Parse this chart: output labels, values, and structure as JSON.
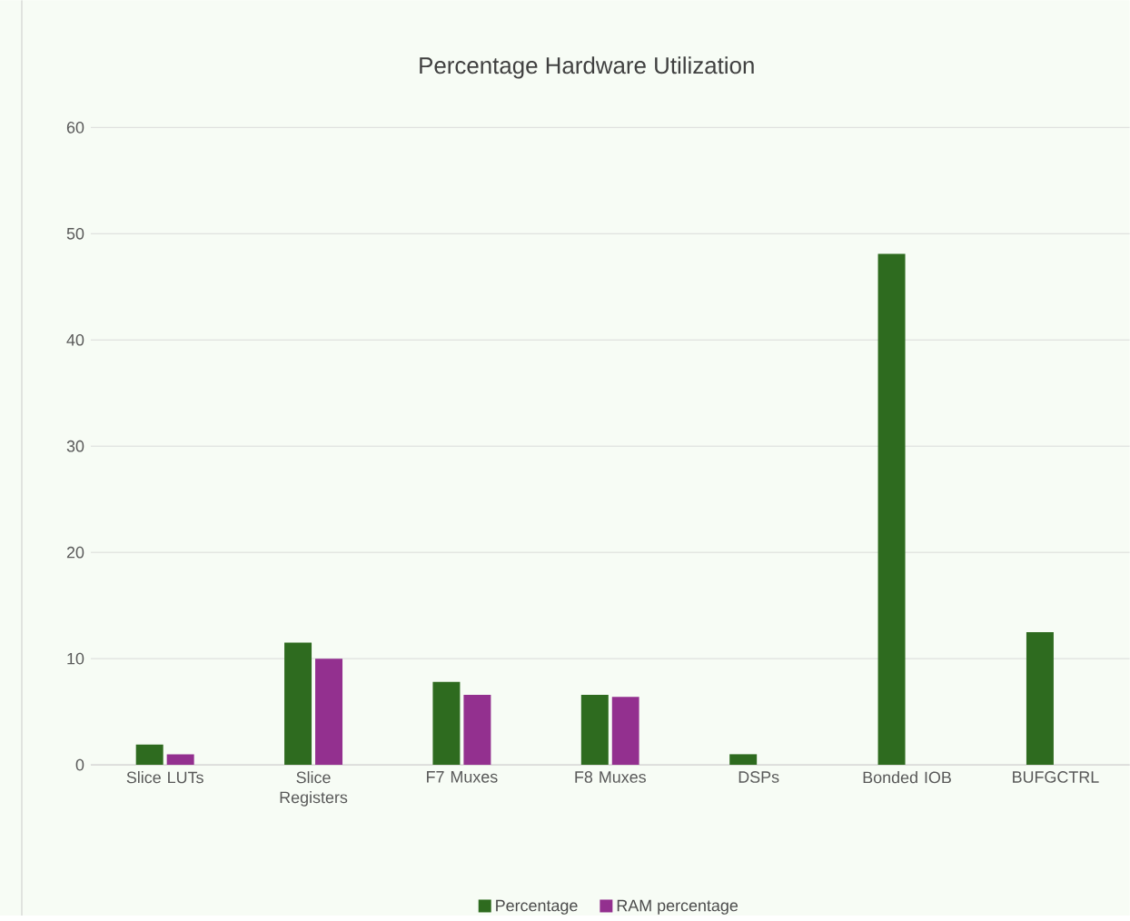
{
  "chart_data": {
    "type": "bar",
    "title": "Percentage Hardware Utilization",
    "categories": [
      "Slice LUTs",
      "Slice Registers",
      "F7 Muxes",
      "F8 Muxes",
      "DSPs",
      "Bonded IOB",
      "BUFGCTRL"
    ],
    "series": [
      {
        "name": "Percentage",
        "color": "#2e6b1f",
        "values": [
          1.9,
          11.5,
          7.8,
          6.6,
          1.0,
          48.1,
          12.5
        ]
      },
      {
        "name": "RAM percentage",
        "color": "#93308f",
        "values": [
          1.0,
          10.0,
          6.6,
          6.4,
          null,
          null,
          null
        ]
      }
    ],
    "ylim": [
      0,
      60
    ],
    "yticks": [
      0,
      10,
      20,
      30,
      40,
      50,
      60
    ],
    "grid": "y",
    "legend": "bottom"
  }
}
